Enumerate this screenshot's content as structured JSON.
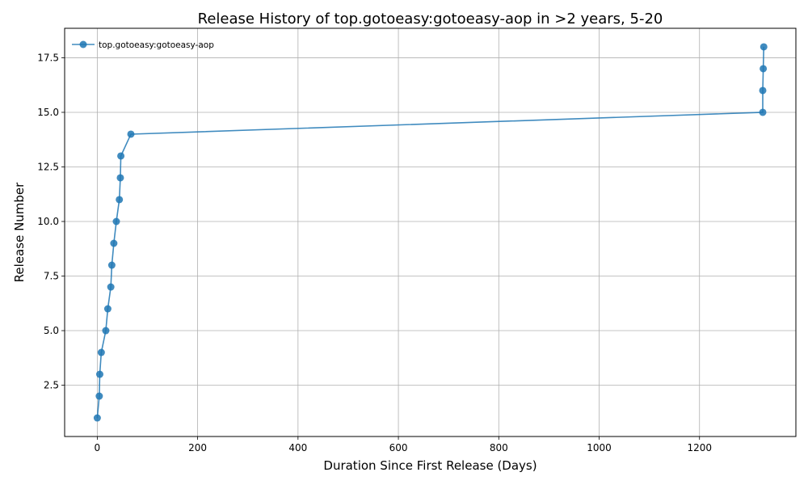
{
  "chart_data": {
    "type": "line",
    "title": "Release History of top.gotoeasy:gotoeasy-aop in >2 years, 5-20",
    "xlabel": "Duration Since First Release (Days)",
    "ylabel": "Release Number",
    "xlim": [
      -65,
      1392
    ],
    "ylim": [
      0.15,
      18.85
    ],
    "xticks": [
      0,
      200,
      400,
      600,
      800,
      1000,
      1200
    ],
    "yticks": [
      2.5,
      5.0,
      7.5,
      10.0,
      12.5,
      15.0,
      17.5
    ],
    "xtick_labels": [
      "0",
      "200",
      "400",
      "600",
      "800",
      "1000",
      "1200"
    ],
    "ytick_labels": [
      "2.5",
      "5.0",
      "7.5",
      "10.0",
      "12.5",
      "15.0",
      "17.5"
    ],
    "grid": true,
    "legend_position": "top-left",
    "series": [
      {
        "name": "top.gotoeasy:gotoeasy-aop",
        "color": "#1f77b4",
        "marker": "circle",
        "x": [
          0,
          4,
          5,
          8,
          17,
          21,
          27,
          29,
          33,
          38,
          44,
          46,
          47,
          67,
          1326,
          1326,
          1327,
          1328
        ],
        "y": [
          1,
          2,
          3,
          4,
          5,
          6,
          7,
          8,
          9,
          10,
          11,
          12,
          13,
          14,
          15,
          16,
          17,
          18
        ]
      }
    ]
  }
}
